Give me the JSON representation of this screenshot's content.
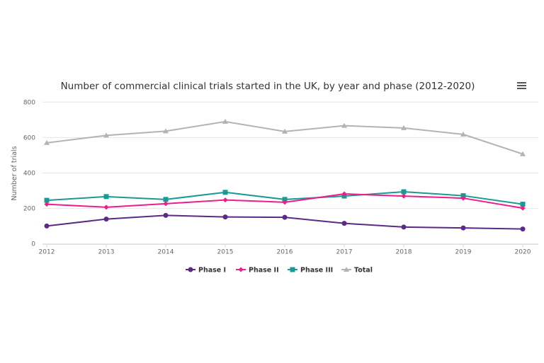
{
  "chart_data": {
    "type": "line",
    "title": "Number of commercial clinical trials started in the UK, by year and phase (2012-2020)",
    "xlabel": "",
    "ylabel": "Number of trials",
    "ylim": [
      0,
      800
    ],
    "yticks": [
      0,
      200,
      400,
      600,
      800
    ],
    "grid": true,
    "legend": "bottom",
    "categories": [
      "2012",
      "2013",
      "2014",
      "2015",
      "2016",
      "2017",
      "2018",
      "2019",
      "2020"
    ],
    "series": [
      {
        "name": "Phase I",
        "color": "#5b2a86",
        "marker": "circle",
        "values": [
          101,
          140,
          161,
          152,
          150,
          116,
          95,
          90,
          84
        ]
      },
      {
        "name": "Phase II",
        "color": "#ee1c8c",
        "marker": "diamond",
        "values": [
          224,
          207,
          227,
          248,
          235,
          282,
          270,
          258,
          202
        ]
      },
      {
        "name": "Phase III",
        "color": "#1a9a94",
        "marker": "square",
        "values": [
          246,
          267,
          251,
          291,
          251,
          270,
          294,
          272,
          224
        ]
      },
      {
        "name": "Total",
        "color": "#b3b3b3",
        "marker": "triangle",
        "values": [
          570,
          612,
          636,
          690,
          634,
          667,
          654,
          618,
          507
        ]
      }
    ]
  },
  "menu_icon": "hamburger-menu-icon"
}
